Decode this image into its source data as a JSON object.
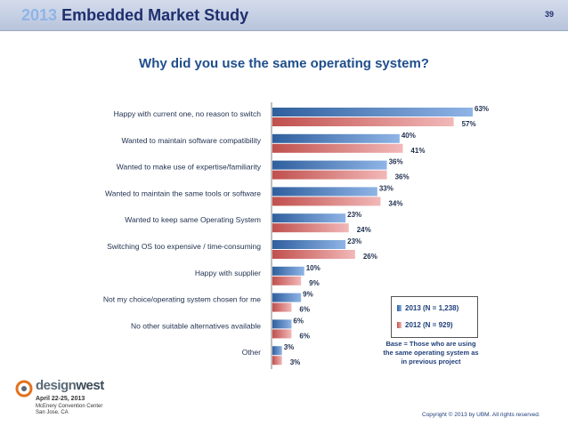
{
  "header": {
    "year": "2013",
    "title": "Embedded Market Study",
    "page_number": "39"
  },
  "chart_data": {
    "type": "bar",
    "orientation": "horizontal",
    "title": "Why did you use the same operating system?",
    "categories": [
      "Happy with current one, no reason to switch",
      "Wanted to maintain software compatibility",
      "Wanted to make use of expertise/familiarity",
      "Wanted to maintain the same tools or software",
      "Wanted to keep same Operating System",
      "Switching OS too expensive / time-consuming",
      "Happy with supplier",
      "Not my choice/operating system chosen for me",
      "No other suitable alternatives available",
      "Other"
    ],
    "series": [
      {
        "name": "2013 (N = 1,238)",
        "color": "#4f81bd",
        "values": [
          63,
          40,
          36,
          33,
          23,
          23,
          10,
          9,
          6,
          3
        ]
      },
      {
        "name": "2012 (N = 929)",
        "color": "#d97b7b",
        "values": [
          57,
          41,
          36,
          34,
          24,
          26,
          9,
          6,
          6,
          3
        ]
      }
    ],
    "value_suffix": "%",
    "xlim": [
      0,
      70
    ],
    "grid": false,
    "legend_position": "bottom-right"
  },
  "legend": {
    "items": [
      "2013 (N = 1,238)",
      "2012 (N = 929)"
    ]
  },
  "base_note": "Base = Those who are using the same operating system as in previous project",
  "logo": {
    "name_part1": "design",
    "name_part2": "west",
    "dates": "April 22-25, 2013",
    "venue": "McEnery Convention Center",
    "city": "San Jose, CA"
  },
  "copyright": "Copyright © 2013 by UBM. All rights reserved."
}
